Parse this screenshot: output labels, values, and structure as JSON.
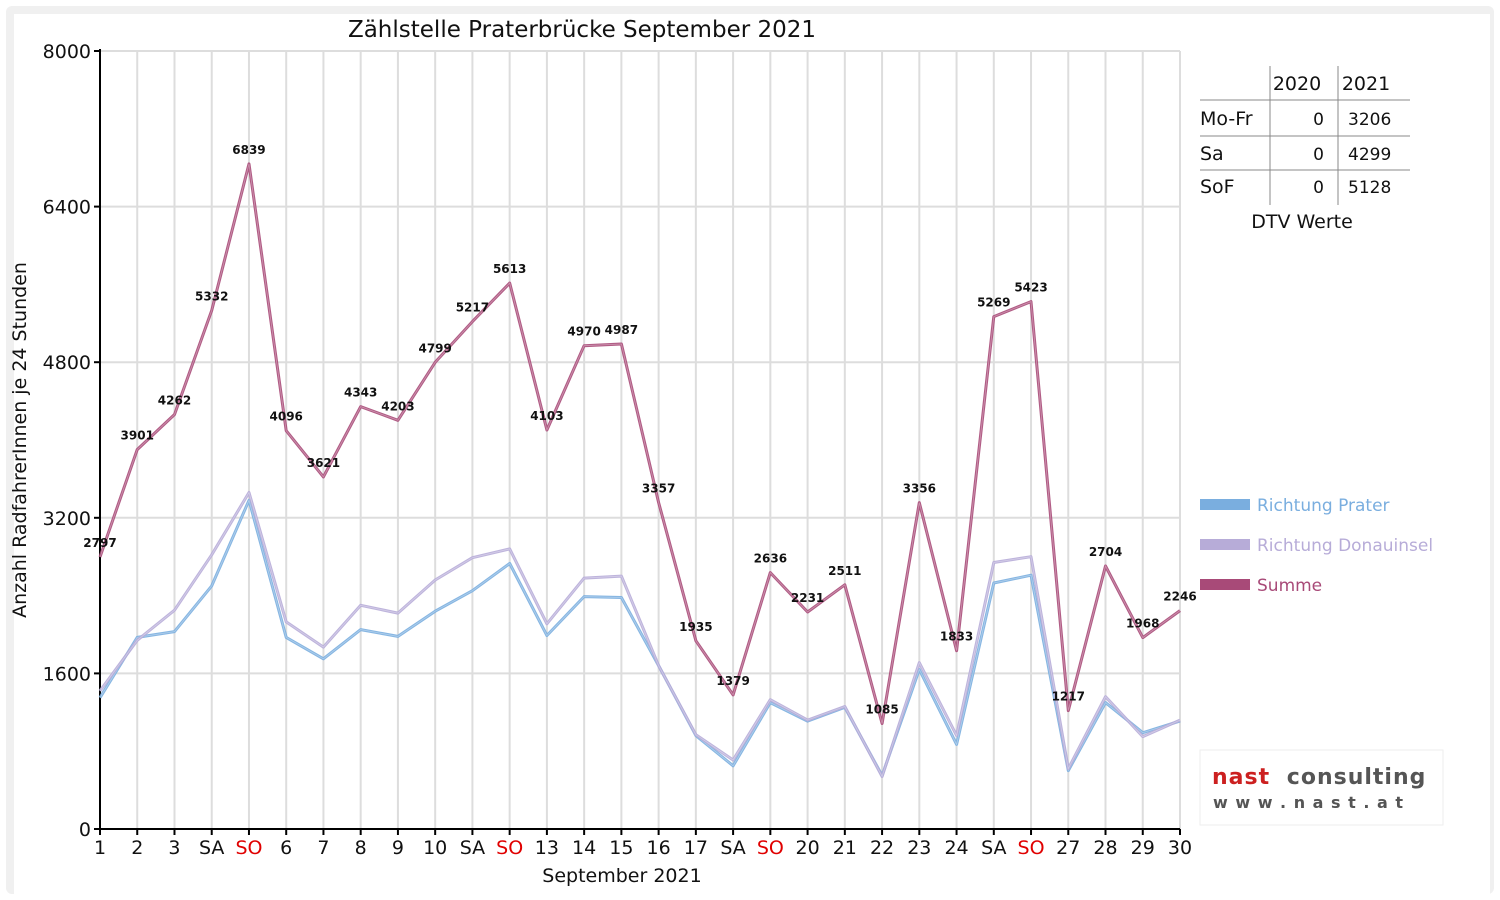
{
  "chart_data": {
    "type": "line",
    "title": "Zählstelle Praterbrücke September 2021",
    "xlabel": "September 2021",
    "ylabel": "Anzahl RadfahrerInnen je 24 Stunden",
    "ylim": [
      0,
      8000
    ],
    "yticks": [
      0,
      1600,
      3200,
      4800,
      6400,
      8000
    ],
    "grid": true,
    "legend_position": "right",
    "x_labels": [
      "1",
      "2",
      "3",
      "SA",
      "SO",
      "6",
      "7",
      "8",
      "9",
      "10",
      "SA",
      "SO",
      "13",
      "14",
      "15",
      "16",
      "17",
      "SA",
      "SO",
      "20",
      "21",
      "22",
      "23",
      "24",
      "SA",
      "SO",
      "27",
      "28",
      "29",
      "30"
    ],
    "sunday_indices": [
      4,
      11,
      18,
      25
    ],
    "sunday_color": "#e00000",
    "series": [
      {
        "name": "Richtung Prater",
        "color": "#7aaedf",
        "values": [
          1350,
          1970,
          2030,
          2500,
          3380,
          1970,
          1750,
          2050,
          1980,
          2240,
          2450,
          2730,
          1990,
          2390,
          2380,
          1680,
          960,
          650,
          1300,
          1110,
          1250,
          550,
          1640,
          870,
          2530,
          2610,
          600,
          1300,
          990,
          1110
        ]
      },
      {
        "name": "Richtung Donauinsel",
        "color": "#b7acd8",
        "values": [
          1420,
          1940,
          2250,
          2820,
          3460,
          2130,
          1870,
          2300,
          2220,
          2560,
          2790,
          2880,
          2110,
          2580,
          2600,
          1680,
          970,
          710,
          1330,
          1120,
          1260,
          540,
          1710,
          960,
          2740,
          2800,
          620,
          1360,
          950,
          1120
        ]
      },
      {
        "name": "Summe",
        "color": "#a84a78",
        "values": [
          2797,
          3901,
          4262,
          5332,
          6839,
          4096,
          3621,
          4343,
          4203,
          4799,
          5217,
          5613,
          4103,
          4970,
          4987,
          3357,
          1935,
          1379,
          2636,
          2231,
          2511,
          1085,
          3356,
          1833,
          5269,
          5423,
          1217,
          2704,
          1968,
          2246
        ]
      }
    ],
    "data_labels": [
      "2797",
      "3901",
      "4262",
      "5332",
      "6839",
      "4096",
      "3621",
      "4343",
      "4203",
      "4799",
      "5217",
      "5613",
      "4103",
      "4970",
      "4987",
      "3357",
      "1935",
      "1379",
      "2636",
      "2231",
      "2511",
      "1085",
      "3356",
      "1833",
      "5269",
      "5423",
      "1217",
      "2704",
      "1968",
      "2246"
    ]
  },
  "dtv_table": {
    "headers": [
      "",
      "2020",
      "2021"
    ],
    "rows": [
      {
        "label": "Mo-Fr",
        "v2020": "0",
        "v2021": "3206"
      },
      {
        "label": "Sa",
        "v2020": "0",
        "v2021": "4299"
      },
      {
        "label": "SoF",
        "v2020": "0",
        "v2021": "5128"
      }
    ],
    "caption": "DTV Werte"
  },
  "logo": {
    "brand_word_1": "nast",
    "brand_word_2": "consulting",
    "url_text": "w w w . n a s t . a t",
    "brand_color_1": "#cc2020",
    "brand_color_2": "#555555"
  }
}
